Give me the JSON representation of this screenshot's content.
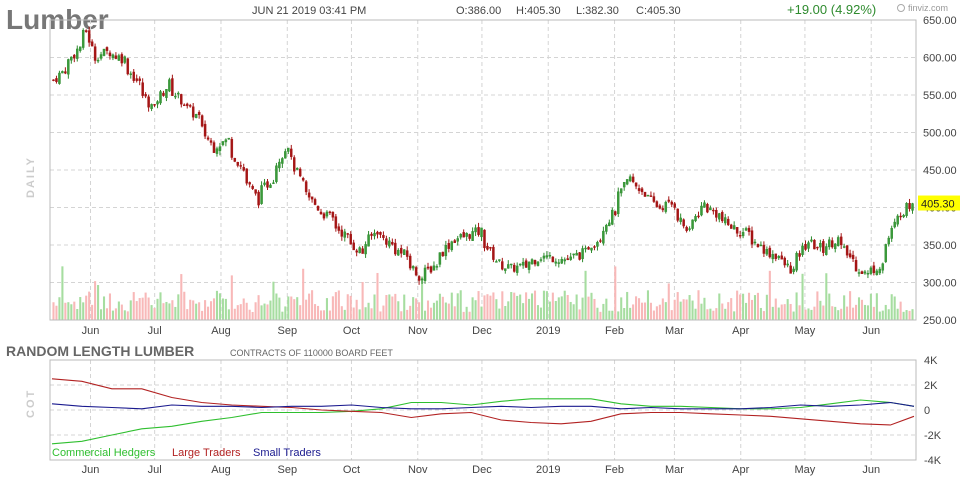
{
  "header": {
    "symbol": "Lumber",
    "datetime": "JUN 21 2019 03:41 PM",
    "open": "O:386.00",
    "high": "H:405.30",
    "low": "L:382.30",
    "close": "C:405.30",
    "change": "+19.00 (4.92%)",
    "brand": "finviz.com"
  },
  "colors": {
    "up": "#2e8b2e",
    "down": "#a41515",
    "vol_up": "#a6dda0",
    "vol_down": "#f8b8b8",
    "grid": "#d4d4d4",
    "text": "#444444",
    "price_tag_bg": "#ffff00",
    "commercial": "#2fbf2f",
    "large": "#b22222",
    "small": "#1a1a8f"
  },
  "chart_data": [
    {
      "type": "candlestick",
      "ylabel": "DAILY",
      "ylim": [
        250,
        650
      ],
      "y_ticks": [
        "650.00",
        "600.00",
        "550.00",
        "500.00",
        "450.00",
        "400.00",
        "350.00",
        "300.00",
        "250.00"
      ],
      "y_tick_values": [
        650,
        600,
        550,
        500,
        450,
        400,
        350,
        300,
        250
      ],
      "x_tick_labels": [
        "Jun",
        "Jul",
        "Aug",
        "Sep",
        "Oct",
        "Nov",
        "Dec",
        "2019",
        "Feb",
        "Mar",
        "Apr",
        "May",
        "Jun"
      ],
      "x_tick_months": [
        "2018-06",
        "2018-07",
        "2018-08",
        "2018-09",
        "2018-10",
        "2018-11",
        "2018-12",
        "2019-01",
        "2019-02",
        "2019-03",
        "2019-04",
        "2019-05",
        "2019-06"
      ],
      "last_price": "405.30",
      "close_path": [
        [
          "2018-05-14",
          570
        ],
        [
          "2018-05-21",
          595
        ],
        [
          "2018-05-29",
          635
        ],
        [
          "2018-06-01",
          600
        ],
        [
          "2018-06-08",
          608
        ],
        [
          "2018-06-15",
          598
        ],
        [
          "2018-06-22",
          565
        ],
        [
          "2018-06-29",
          530
        ],
        [
          "2018-07-06",
          565
        ],
        [
          "2018-07-13",
          540
        ],
        [
          "2018-07-20",
          520
        ],
        [
          "2018-07-27",
          480
        ],
        [
          "2018-08-03",
          490
        ],
        [
          "2018-08-10",
          450
        ],
        [
          "2018-08-17",
          410
        ],
        [
          "2018-08-24",
          440
        ],
        [
          "2018-08-31",
          485
        ],
        [
          "2018-09-07",
          430
        ],
        [
          "2018-09-14",
          400
        ],
        [
          "2018-09-21",
          385
        ],
        [
          "2018-09-28",
          360
        ],
        [
          "2018-10-05",
          340
        ],
        [
          "2018-10-12",
          370
        ],
        [
          "2018-10-19",
          350
        ],
        [
          "2018-10-26",
          335
        ],
        [
          "2018-11-02",
          305
        ],
        [
          "2018-11-09",
          325
        ],
        [
          "2018-11-16",
          355
        ],
        [
          "2018-11-23",
          362
        ],
        [
          "2018-11-30",
          368
        ],
        [
          "2018-12-07",
          330
        ],
        [
          "2018-12-14",
          318
        ],
        [
          "2018-12-21",
          322
        ],
        [
          "2018-12-28",
          335
        ],
        [
          "2019-01-04",
          333
        ],
        [
          "2019-01-11",
          330
        ],
        [
          "2019-01-18",
          340
        ],
        [
          "2019-01-25",
          360
        ],
        [
          "2019-02-01",
          395
        ],
        [
          "2019-02-08",
          440
        ],
        [
          "2019-02-15",
          420
        ],
        [
          "2019-02-22",
          400
        ],
        [
          "2019-03-01",
          405
        ],
        [
          "2019-03-08",
          365
        ],
        [
          "2019-03-15",
          405
        ],
        [
          "2019-03-22",
          390
        ],
        [
          "2019-03-29",
          372
        ],
        [
          "2019-04-05",
          365
        ],
        [
          "2019-04-12",
          345
        ],
        [
          "2019-04-19",
          335
        ],
        [
          "2019-04-26",
          315
        ],
        [
          "2019-05-03",
          355
        ],
        [
          "2019-05-10",
          345
        ],
        [
          "2019-05-17",
          358
        ],
        [
          "2019-05-24",
          330
        ],
        [
          "2019-05-31",
          310
        ],
        [
          "2019-06-07",
          325
        ],
        [
          "2019-06-14",
          385
        ],
        [
          "2019-06-21",
          405.3
        ]
      ]
    },
    {
      "type": "line",
      "title": "RANDOM LENGTH LUMBER",
      "subtitle": "CONTRACTS OF 110000 BOARD FEET",
      "ylabel": "COT",
      "ylim": [
        -4000,
        4000
      ],
      "y_ticks": [
        "4K",
        "2K",
        "0",
        "-2K",
        "-4K"
      ],
      "y_tick_values": [
        4000,
        2000,
        0,
        -2000,
        -4000
      ],
      "x_tick_labels": [
        "Jun",
        "Jul",
        "Aug",
        "Sep",
        "Oct",
        "Nov",
        "Dec",
        "2019",
        "Feb",
        "Mar",
        "Apr",
        "May",
        "Jun"
      ],
      "x_tick_months": [
        "2018-06",
        "2018-07",
        "2018-08",
        "2018-09",
        "2018-10",
        "2018-11",
        "2018-12",
        "2019-01",
        "2019-02",
        "2019-03",
        "2019-04",
        "2019-05",
        "2019-06"
      ],
      "legend": [
        "Commercial Hedgers",
        "Large Traders",
        "Small Traders"
      ],
      "series": [
        {
          "name": "Commercial Hedgers",
          "points": [
            [
              "2018-05-14",
              -2700
            ],
            [
              "2018-05-28",
              -2500
            ],
            [
              "2018-06-11",
              -2000
            ],
            [
              "2018-06-25",
              -1500
            ],
            [
              "2018-07-09",
              -1300
            ],
            [
              "2018-07-23",
              -900
            ],
            [
              "2018-08-06",
              -600
            ],
            [
              "2018-08-20",
              -200
            ],
            [
              "2018-09-03",
              -200
            ],
            [
              "2018-09-17",
              -200
            ],
            [
              "2018-10-01",
              -100
            ],
            [
              "2018-10-15",
              100
            ],
            [
              "2018-10-29",
              600
            ],
            [
              "2018-11-12",
              600
            ],
            [
              "2018-11-26",
              400
            ],
            [
              "2018-12-10",
              700
            ],
            [
              "2018-12-24",
              900
            ],
            [
              "2019-01-07",
              900
            ],
            [
              "2019-01-21",
              900
            ],
            [
              "2019-02-04",
              500
            ],
            [
              "2019-02-18",
              300
            ],
            [
              "2019-03-04",
              300
            ],
            [
              "2019-03-18",
              200
            ],
            [
              "2019-04-01",
              100
            ],
            [
              "2019-04-15",
              100
            ],
            [
              "2019-04-29",
              200
            ],
            [
              "2019-05-13",
              500
            ],
            [
              "2019-05-27",
              800
            ],
            [
              "2019-06-10",
              600
            ],
            [
              "2019-06-21",
              300
            ]
          ]
        },
        {
          "name": "Large Traders",
          "points": [
            [
              "2018-05-14",
              2500
            ],
            [
              "2018-05-28",
              2300
            ],
            [
              "2018-06-11",
              1700
            ],
            [
              "2018-06-25",
              1700
            ],
            [
              "2018-07-09",
              1000
            ],
            [
              "2018-07-23",
              600
            ],
            [
              "2018-08-06",
              400
            ],
            [
              "2018-08-20",
              300
            ],
            [
              "2018-09-03",
              200
            ],
            [
              "2018-09-17",
              0
            ],
            [
              "2018-10-01",
              -100
            ],
            [
              "2018-10-15",
              -200
            ],
            [
              "2018-10-29",
              -600
            ],
            [
              "2018-11-12",
              -300
            ],
            [
              "2018-11-26",
              -200
            ],
            [
              "2018-12-10",
              -800
            ],
            [
              "2018-12-24",
              -1000
            ],
            [
              "2019-01-07",
              -1100
            ],
            [
              "2019-01-21",
              -900
            ],
            [
              "2019-02-04",
              -300
            ],
            [
              "2019-02-18",
              -200
            ],
            [
              "2019-03-04",
              -200
            ],
            [
              "2019-03-18",
              -300
            ],
            [
              "2019-04-01",
              -400
            ],
            [
              "2019-04-15",
              -500
            ],
            [
              "2019-04-29",
              -700
            ],
            [
              "2019-05-13",
              -900
            ],
            [
              "2019-05-27",
              -1100
            ],
            [
              "2019-06-10",
              -1200
            ],
            [
              "2019-06-21",
              -500
            ]
          ]
        },
        {
          "name": "Small Traders",
          "points": [
            [
              "2018-05-14",
              500
            ],
            [
              "2018-05-28",
              300
            ],
            [
              "2018-06-11",
              200
            ],
            [
              "2018-06-25",
              100
            ],
            [
              "2018-07-09",
              400
            ],
            [
              "2018-07-23",
              300
            ],
            [
              "2018-08-06",
              300
            ],
            [
              "2018-08-20",
              200
            ],
            [
              "2018-09-03",
              300
            ],
            [
              "2018-09-17",
              300
            ],
            [
              "2018-10-01",
              400
            ],
            [
              "2018-10-15",
              200
            ],
            [
              "2018-10-29",
              100
            ],
            [
              "2018-11-12",
              100
            ],
            [
              "2018-11-26",
              200
            ],
            [
              "2018-12-10",
              300
            ],
            [
              "2018-12-24",
              200
            ],
            [
              "2019-01-07",
              300
            ],
            [
              "2019-01-21",
              300
            ],
            [
              "2019-02-04",
              100
            ],
            [
              "2019-02-18",
              200
            ],
            [
              "2019-03-04",
              100
            ],
            [
              "2019-03-18",
              100
            ],
            [
              "2019-04-01",
              100
            ],
            [
              "2019-04-15",
              200
            ],
            [
              "2019-04-29",
              400
            ],
            [
              "2019-05-13",
              300
            ],
            [
              "2019-05-27",
              400
            ],
            [
              "2019-06-10",
              600
            ],
            [
              "2019-06-21",
              300
            ]
          ]
        }
      ]
    }
  ]
}
